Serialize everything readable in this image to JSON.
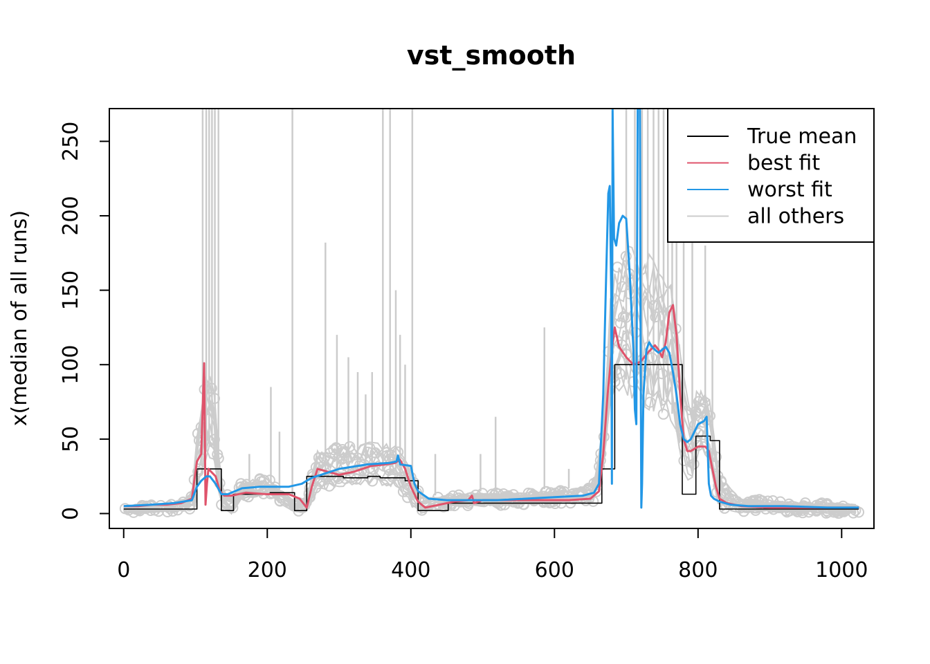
{
  "chart_data": {
    "type": "line",
    "title": "vst_smooth",
    "xlabel": "",
    "ylabel": "x(median of all runs)",
    "xlim": [
      -20,
      1045
    ],
    "ylim": [
      -10,
      272
    ],
    "x_ticks": [
      0,
      200,
      400,
      600,
      800,
      1000
    ],
    "x_tick_labels": [
      "0",
      "200",
      "400",
      "600",
      "800",
      "1000"
    ],
    "y_ticks": [
      0,
      50,
      100,
      150,
      200,
      250
    ],
    "y_tick_labels": [
      "0",
      "50",
      "100",
      "150",
      "200",
      "250"
    ],
    "grid": false,
    "legend_position": "top-right",
    "colors": {
      "true_mean": "#000000",
      "best_fit": "#DF536B",
      "worst_fit": "#2297E6",
      "all_others": "#CCCCCC"
    },
    "series": [
      {
        "name": "True mean",
        "style": "step",
        "x": [
          0,
          102,
          102,
          136,
          136,
          153,
          153,
          204,
          204,
          238,
          238,
          255,
          255,
          272,
          272,
          306,
          306,
          340,
          340,
          357,
          357,
          392,
          392,
          410,
          410,
          452,
          452,
          485,
          485,
          520,
          520,
          560,
          560,
          600,
          600,
          666,
          666,
          684,
          684,
          700,
          700,
          730,
          730,
          760,
          760,
          778,
          778,
          797,
          797,
          817,
          817,
          830,
          830,
          1024
        ],
        "y": [
          3,
          3,
          30,
          30,
          2,
          2,
          13,
          13,
          14,
          14,
          2,
          2,
          25,
          25,
          25,
          25,
          24,
          24,
          25,
          25,
          24,
          24,
          22,
          22,
          2,
          2,
          7,
          7,
          7,
          7,
          7,
          7,
          7,
          7,
          7,
          7,
          30,
          30,
          100,
          100,
          100,
          100,
          100,
          100,
          100,
          100,
          13,
          13,
          52,
          52,
          49,
          49,
          3,
          3
        ]
      },
      {
        "name": "best fit",
        "x": [
          0,
          20,
          40,
          60,
          80,
          95,
          102,
          108,
          112,
          114,
          116,
          118,
          122,
          128,
          134,
          140,
          150,
          170,
          200,
          230,
          245,
          255,
          262,
          270,
          285,
          300,
          320,
          345,
          365,
          378,
          385,
          392,
          400,
          410,
          420,
          440,
          460,
          480,
          485,
          488,
          500,
          540,
          580,
          620,
          650,
          662,
          668,
          674,
          680,
          684,
          690,
          700,
          710,
          720,
          730,
          740,
          745,
          750,
          755,
          760,
          765,
          770,
          775,
          780,
          785,
          790,
          800,
          810,
          815,
          820,
          825,
          830,
          840,
          860,
          900,
          950,
          1000,
          1024
        ],
        "y": [
          5,
          5,
          6,
          6,
          7,
          10,
          35,
          40,
          101,
          6,
          20,
          30,
          28,
          25,
          15,
          12,
          12,
          14,
          13,
          13,
          10,
          4,
          18,
          30,
          28,
          26,
          28,
          32,
          33,
          34,
          36,
          30,
          18,
          8,
          4,
          6,
          8,
          9,
          12,
          7,
          9,
          9,
          9,
          9,
          10,
          15,
          40,
          80,
          110,
          125,
          112,
          105,
          100,
          102,
          108,
          113,
          110,
          105,
          115,
          135,
          140,
          120,
          80,
          50,
          42,
          42,
          45,
          45,
          42,
          30,
          18,
          10,
          7,
          5,
          4,
          4,
          4,
          4
        ]
      },
      {
        "name": "worst fit",
        "x": [
          0,
          40,
          70,
          95,
          102,
          108,
          115,
          120,
          128,
          136,
          145,
          165,
          190,
          230,
          248,
          255,
          262,
          300,
          340,
          370,
          380,
          382,
          385,
          400,
          405,
          410,
          425,
          450,
          480,
          520,
          560,
          600,
          640,
          655,
          662,
          668,
          672,
          675,
          677,
          679,
          680,
          681,
          683,
          686,
          690,
          695,
          700,
          705,
          710,
          712,
          714,
          716,
          718,
          719,
          720,
          721,
          722,
          724,
          728,
          732,
          736,
          740,
          745,
          750,
          755,
          760,
          765,
          770,
          775,
          780,
          785,
          790,
          800,
          808,
          812,
          815,
          818,
          822,
          830,
          845,
          870,
          920,
          980,
          1024
        ],
        "y": [
          5,
          6,
          7,
          9,
          18,
          22,
          25,
          25,
          20,
          13,
          13,
          17,
          18,
          18,
          20,
          22,
          24,
          30,
          33,
          34,
          35,
          39,
          33,
          32,
          20,
          15,
          10,
          9,
          9,
          9,
          10,
          11,
          12,
          14,
          20,
          80,
          160,
          215,
          220,
          150,
          20,
          272,
          185,
          180,
          195,
          200,
          198,
          160,
          110,
          70,
          60,
          272,
          272,
          272,
          120,
          4,
          20,
          80,
          110,
          115,
          112,
          110,
          108,
          110,
          112,
          108,
          95,
          80,
          60,
          50,
          48,
          50,
          60,
          62,
          65,
          20,
          12,
          10,
          8,
          6,
          5,
          5,
          4,
          4
        ]
      }
    ],
    "background_runs": {
      "name": "all others",
      "band_x": [
        0,
        60,
        95,
        102,
        115,
        125,
        135,
        150,
        165,
        200,
        238,
        255,
        270,
        300,
        340,
        380,
        405,
        415,
        450,
        500,
        560,
        620,
        655,
        668,
        680,
        700,
        730,
        760,
        775,
        790,
        800,
        815,
        830,
        860,
        1024
      ],
      "band_low": [
        0,
        1,
        2,
        20,
        35,
        40,
        5,
        0,
        10,
        12,
        1,
        0,
        15,
        18,
        20,
        18,
        2,
        0,
        4,
        5,
        6,
        7,
        8,
        30,
        85,
        80,
        70,
        65,
        35,
        15,
        40,
        38,
        2,
        1,
        0
      ],
      "band_high": [
        5,
        7,
        12,
        55,
        95,
        90,
        20,
        10,
        22,
        24,
        8,
        10,
        42,
        45,
        48,
        46,
        25,
        10,
        12,
        14,
        14,
        16,
        20,
        60,
        160,
        180,
        175,
        160,
        110,
        70,
        85,
        80,
        25,
        10,
        6
      ],
      "spikes": [
        {
          "x": 110,
          "y": 272
        },
        {
          "x": 115,
          "y": 272
        },
        {
          "x": 119,
          "y": 272
        },
        {
          "x": 123,
          "y": 272
        },
        {
          "x": 127,
          "y": 272
        },
        {
          "x": 132,
          "y": 272
        },
        {
          "x": 175,
          "y": 40
        },
        {
          "x": 205,
          "y": 85
        },
        {
          "x": 217,
          "y": 55
        },
        {
          "x": 235,
          "y": 272
        },
        {
          "x": 281,
          "y": 182
        },
        {
          "x": 297,
          "y": 120
        },
        {
          "x": 313,
          "y": 105
        },
        {
          "x": 326,
          "y": 95
        },
        {
          "x": 337,
          "y": 80
        },
        {
          "x": 346,
          "y": 95
        },
        {
          "x": 361,
          "y": 272
        },
        {
          "x": 371,
          "y": 272
        },
        {
          "x": 379,
          "y": 150
        },
        {
          "x": 385,
          "y": 120
        },
        {
          "x": 392,
          "y": 100
        },
        {
          "x": 402,
          "y": 272
        },
        {
          "x": 434,
          "y": 40
        },
        {
          "x": 497,
          "y": 40
        },
        {
          "x": 518,
          "y": 65
        },
        {
          "x": 586,
          "y": 125
        },
        {
          "x": 620,
          "y": 30
        },
        {
          "x": 700,
          "y": 272
        },
        {
          "x": 712,
          "y": 272
        },
        {
          "x": 722,
          "y": 272
        },
        {
          "x": 730,
          "y": 272
        },
        {
          "x": 738,
          "y": 272
        },
        {
          "x": 745,
          "y": 272
        },
        {
          "x": 752,
          "y": 272
        },
        {
          "x": 758,
          "y": 272
        },
        {
          "x": 764,
          "y": 272
        },
        {
          "x": 770,
          "y": 272
        },
        {
          "x": 780,
          "y": 200
        },
        {
          "x": 792,
          "y": 272
        },
        {
          "x": 810,
          "y": 180
        },
        {
          "x": 820,
          "y": 110
        }
      ]
    },
    "legend": [
      {
        "label": "True mean",
        "key": "true_mean"
      },
      {
        "label": "best fit",
        "key": "best_fit"
      },
      {
        "label": "worst fit",
        "key": "worst_fit"
      },
      {
        "label": "all others",
        "key": "all_others"
      }
    ]
  }
}
